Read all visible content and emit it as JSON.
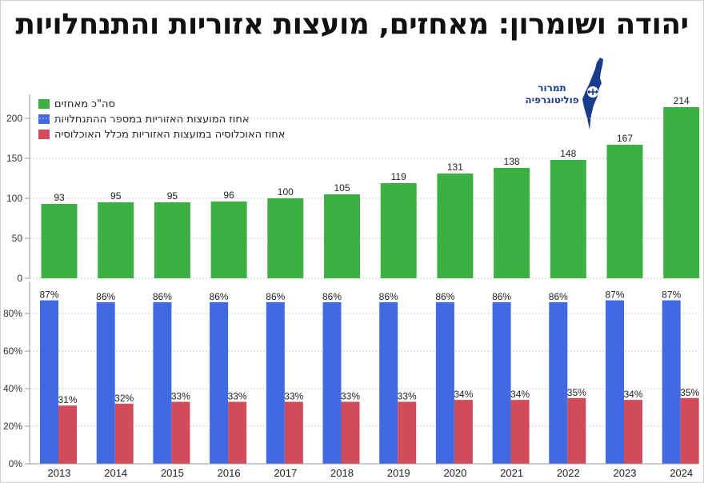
{
  "title": "יהודה ושומרון: מאחזים, מועצות אזוריות והתנחלויות",
  "logo": {
    "line1": "תמרור",
    "line2": "פוליטוגרפיה"
  },
  "colors": {
    "green": "#3cb043",
    "blue": "#4169e1",
    "red": "#d14b5a",
    "grid": "#cccccc"
  },
  "chart_data": [
    {
      "type": "bar",
      "categories": [
        "2013",
        "2014",
        "2015",
        "2016",
        "2017",
        "2018",
        "2019",
        "2020",
        "2021",
        "2022",
        "2023",
        "2024"
      ],
      "series": [
        {
          "name": "סה\"כ מאחזים",
          "color": "#3cb043",
          "values": [
            93,
            95,
            95,
            96,
            100,
            105,
            119,
            131,
            138,
            148,
            167,
            214
          ]
        }
      ],
      "yticks": [
        "0",
        "50",
        "100",
        "150",
        "200"
      ],
      "ylim": [
        0,
        225
      ],
      "data_labels": true
    },
    {
      "type": "bar",
      "categories": [
        "2013",
        "2014",
        "2015",
        "2016",
        "2017",
        "2018",
        "2019",
        "2020",
        "2021",
        "2022",
        "2023",
        "2024"
      ],
      "series": [
        {
          "name": "אחוז המועצות האזוריות במספר ההתנחלויות",
          "color": "#4169e1",
          "values": [
            87,
            86,
            86,
            86,
            86,
            86,
            86,
            86,
            86,
            86,
            87,
            87
          ]
        },
        {
          "name": "אחוז האוכלוסיה במועצות האזוריות מכלל האוכלוסיה",
          "color": "#d14b5a",
          "values": [
            31,
            32,
            33,
            33,
            33,
            33,
            33,
            34,
            34,
            35,
            34,
            35
          ]
        }
      ],
      "yticks": [
        "0%",
        "20%",
        "40%",
        "60%",
        "80%"
      ],
      "ylim": [
        0,
        90
      ],
      "value_suffix": "%",
      "data_labels": true
    }
  ]
}
